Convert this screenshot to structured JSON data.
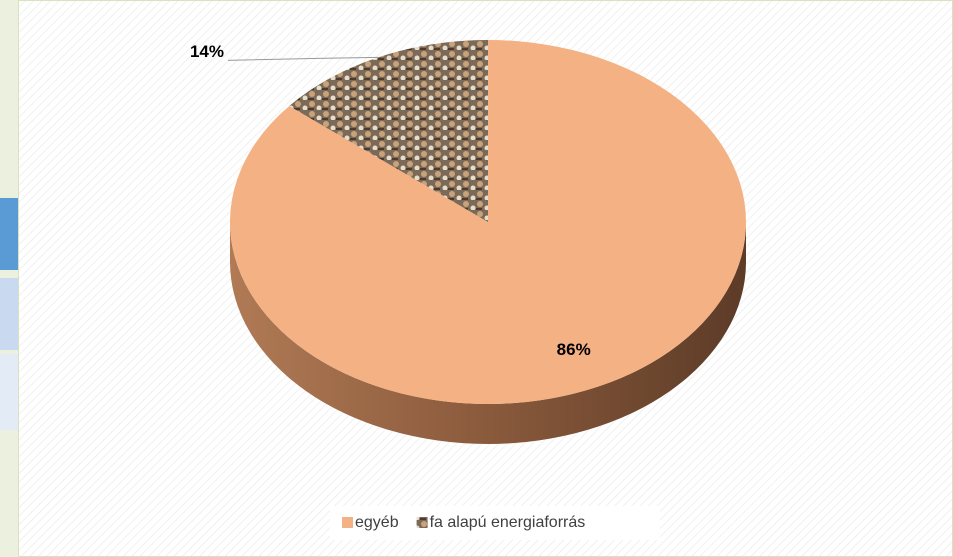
{
  "chart_data": {
    "type": "pie",
    "categories": [
      "egyéb",
      "fa alapú energiaforrás"
    ],
    "values": [
      86,
      14
    ],
    "value_labels": [
      "86%",
      "14%"
    ],
    "colors": [
      "#f4b183",
      "#7b6a57"
    ],
    "legend": "bottom"
  }
}
